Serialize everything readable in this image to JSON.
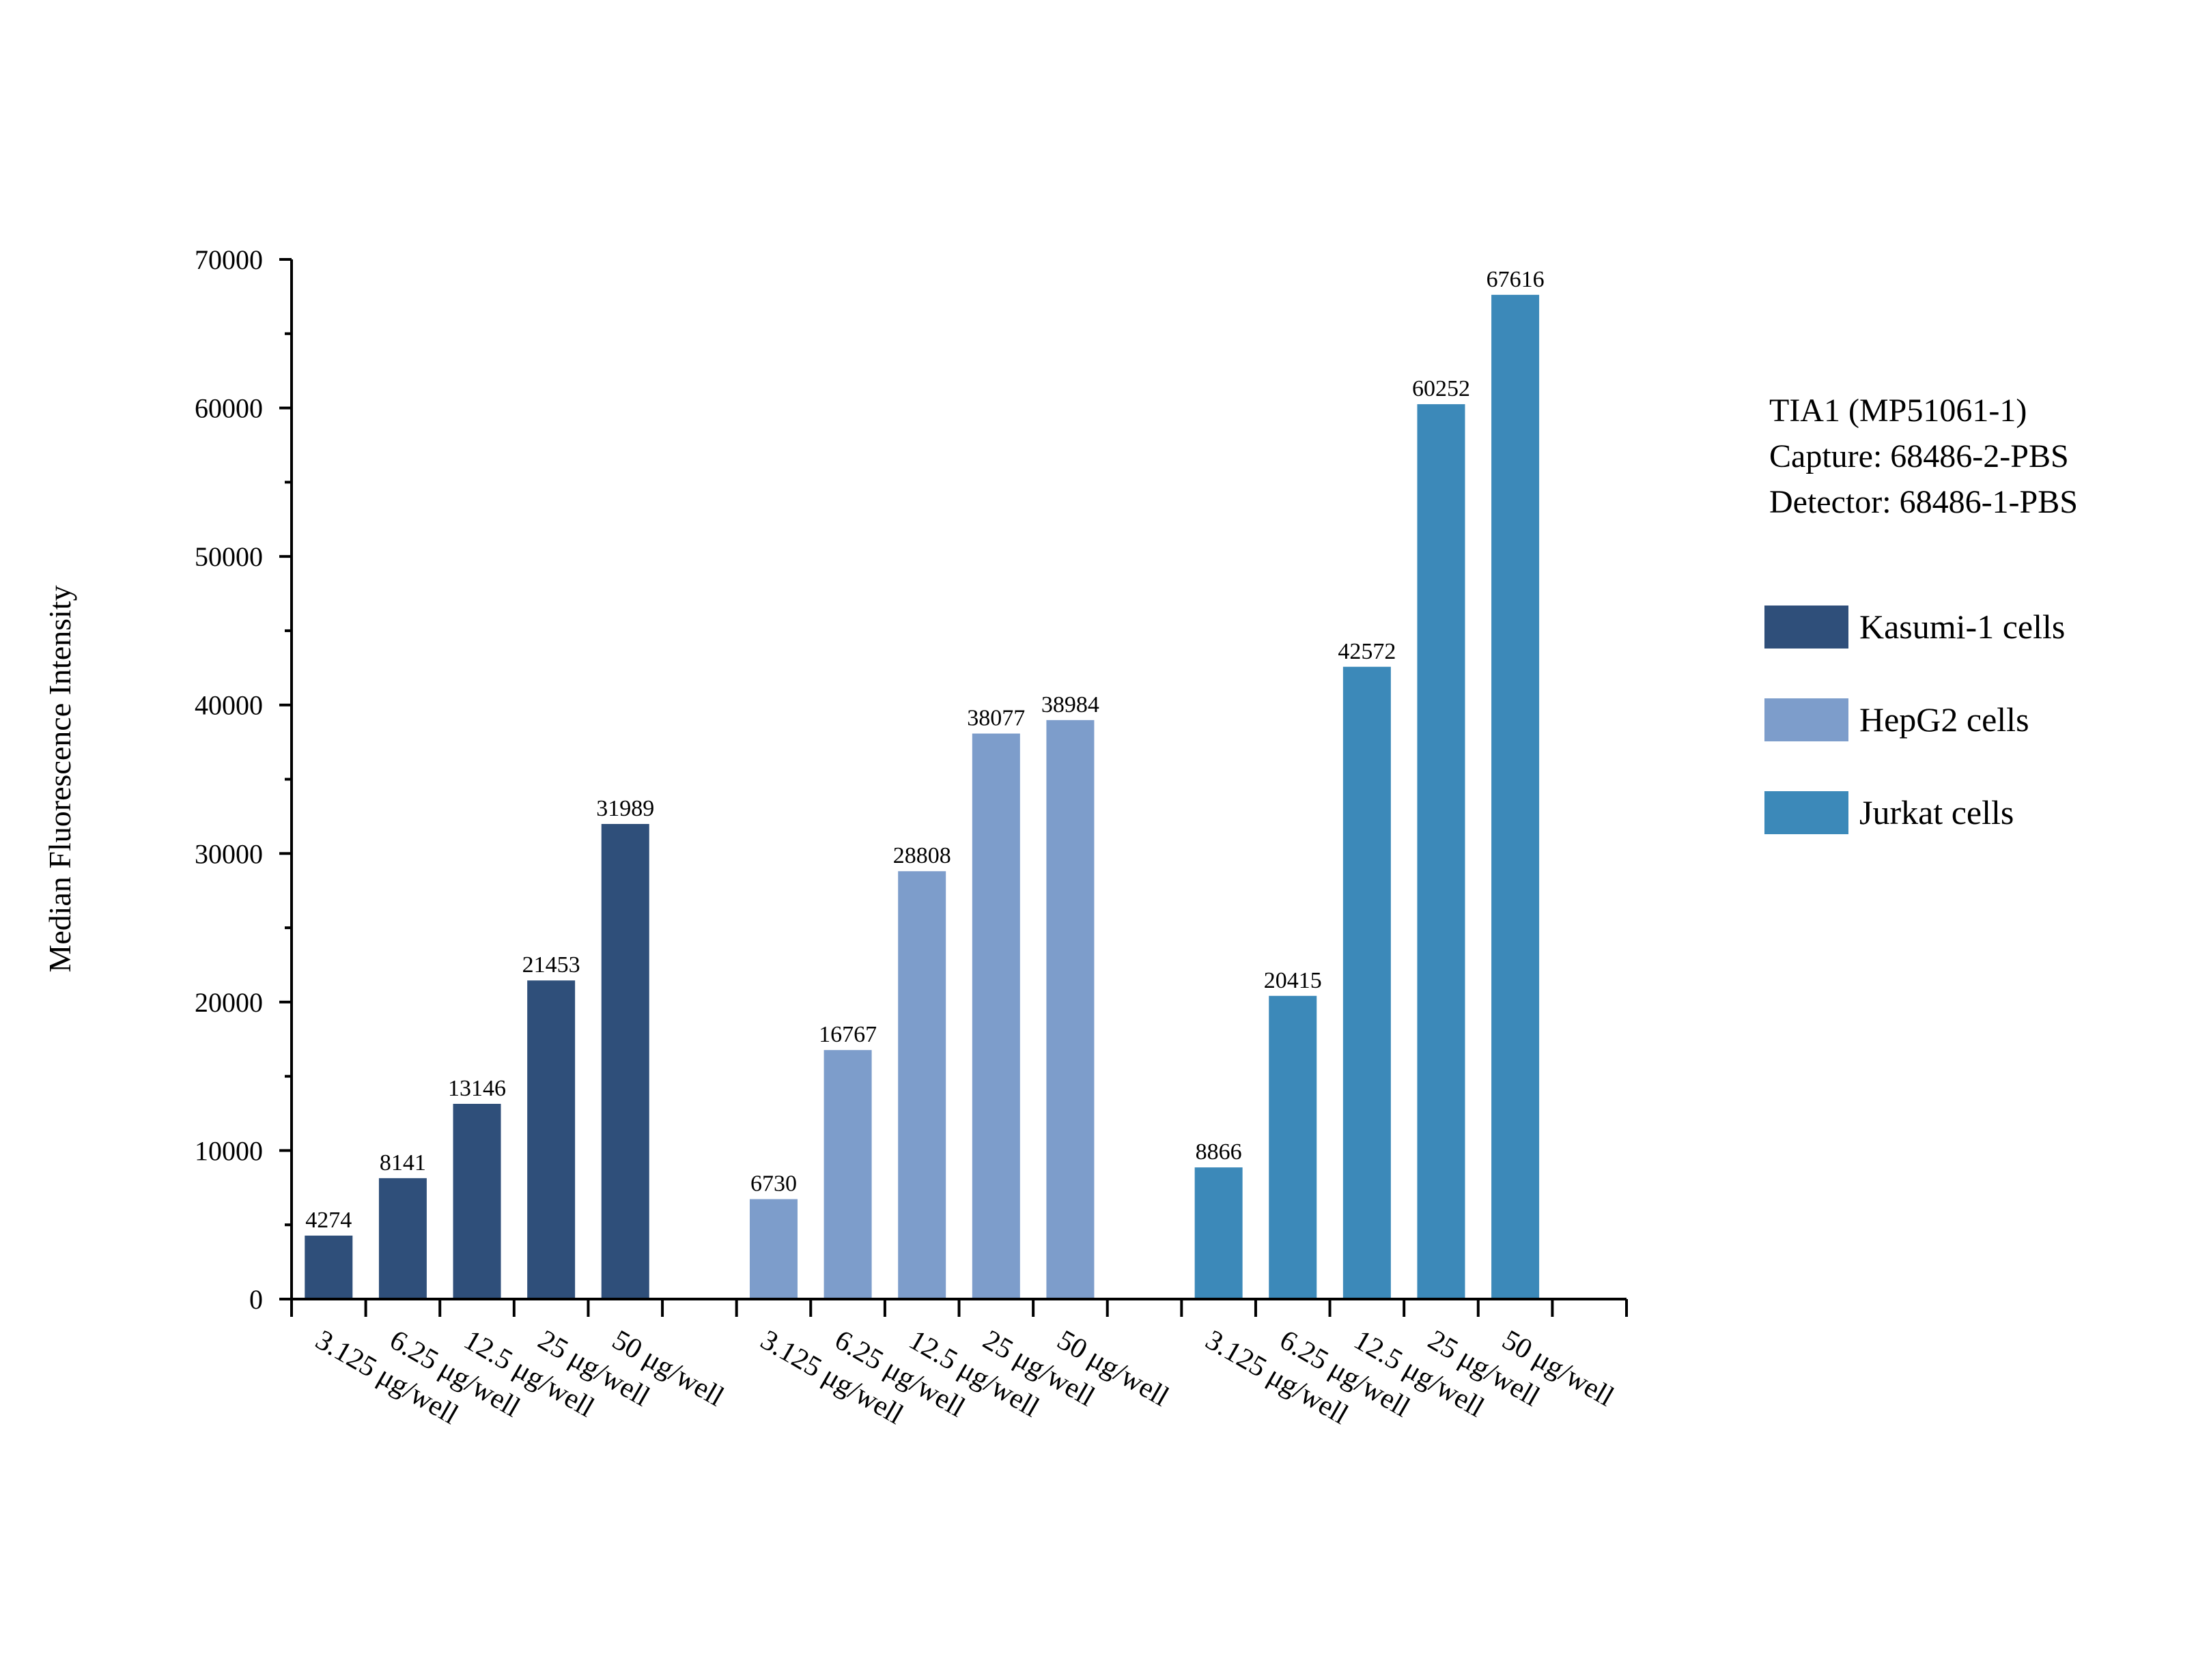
{
  "chart_data": {
    "type": "bar",
    "title": "",
    "xlabel": "",
    "ylabel": "Median Fluorescence Intensity",
    "ylim": [
      0,
      70000
    ],
    "yticks": [
      0,
      10000,
      20000,
      30000,
      40000,
      50000,
      60000,
      70000
    ],
    "ytick_labels": [
      "0",
      "10000",
      "20000",
      "30000",
      "40000",
      "50000",
      "60000",
      "70000"
    ],
    "grid": false,
    "legend_position": "right",
    "annotation": {
      "lines": [
        "TIA1 (MP51061-1)",
        "Capture: 68486-2-PBS",
        "Detector: 68486-1-PBS"
      ]
    },
    "categories": [
      "3.125 μg/well",
      "6.25 μg/well",
      "12.5 μg/well",
      "25 μg/well",
      "50 μg/well"
    ],
    "series": [
      {
        "name": "Kasumi-1 cells",
        "color": "#2f4f7a",
        "values": [
          4274,
          8141,
          13146,
          21453,
          31989
        ],
        "labels": [
          "4274",
          "8141",
          "13146",
          "21453",
          "31989"
        ]
      },
      {
        "name": "HepG2 cells",
        "color": "#7d9dcb",
        "values": [
          6730,
          16767,
          28808,
          38077,
          38984
        ],
        "labels": [
          "6730",
          "16767",
          "28808",
          "38077",
          "38984"
        ]
      },
      {
        "name": "Jurkat cells",
        "color": "#3c89b9",
        "values": [
          8866,
          20415,
          42572,
          60252,
          67616
        ],
        "labels": [
          "8866",
          "20415",
          "42572",
          "60252",
          "67616"
        ]
      }
    ]
  }
}
